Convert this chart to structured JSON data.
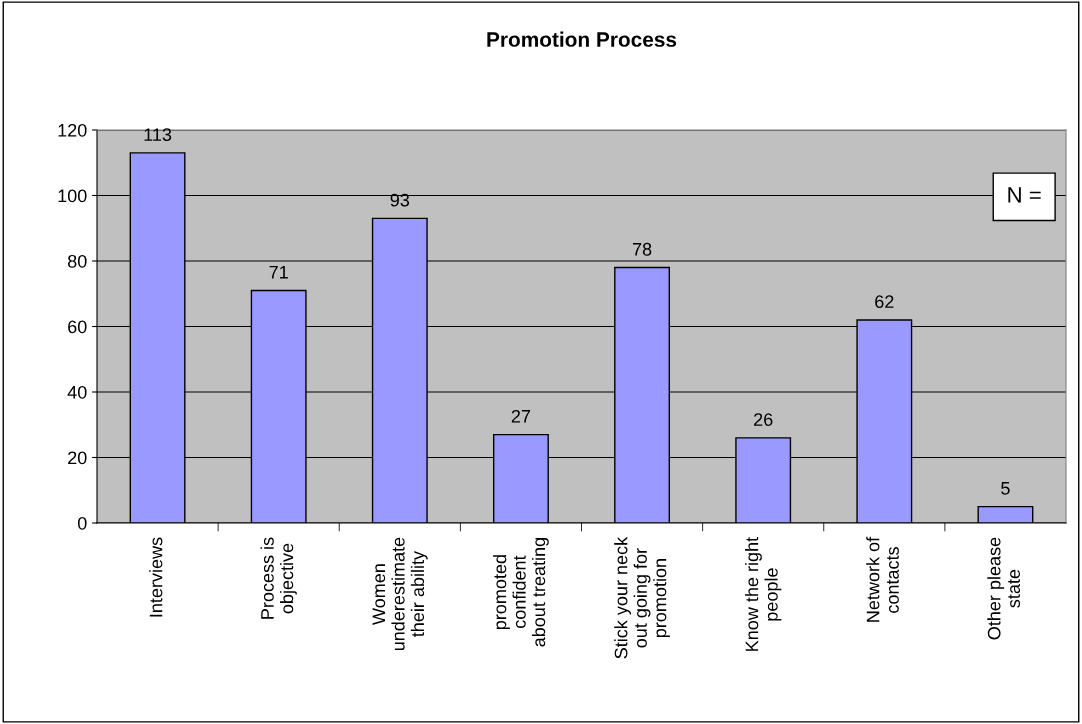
{
  "chart_data": {
    "type": "bar",
    "title": "Promotion Process",
    "categories": [
      "Interviews",
      "Process is\nobjective",
      "Women\nunderestimate\ntheir ability",
      "promoted\nconfident\nabout treating",
      "Stick your neck\nout going for\npromotion",
      "Know the right\npeople",
      "Network of\ncontacts",
      "Other please\nstate"
    ],
    "values": [
      113,
      71,
      93,
      27,
      78,
      26,
      62,
      5
    ],
    "color": "#9999ff",
    "ylim": [
      0,
      120
    ],
    "yticks": [
      0,
      20,
      40,
      60,
      80,
      100,
      120
    ],
    "grid": "y",
    "data_labels": true,
    "annotations": [
      "N ="
    ]
  }
}
